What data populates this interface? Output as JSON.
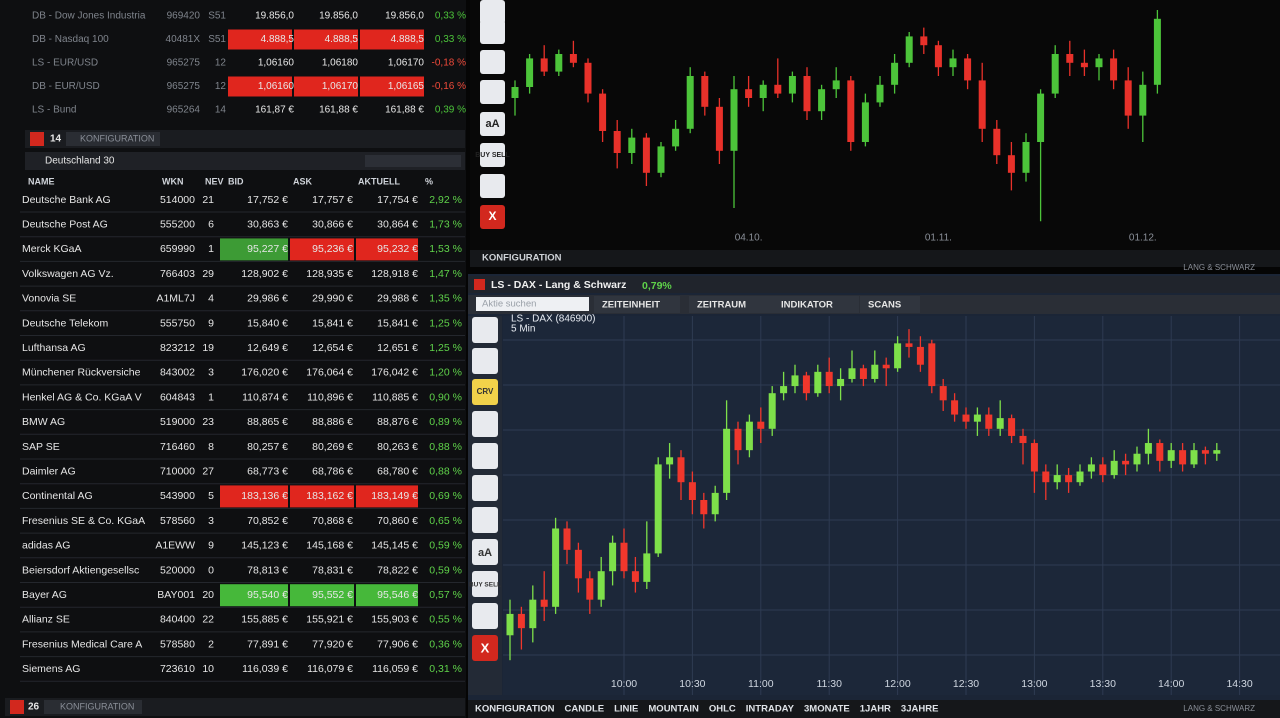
{
  "top_table": {
    "rows": [
      [
        "DB - Dow Jones Industria",
        "969420",
        "S51",
        "19.856,0",
        "19.856,0",
        "19.856,0",
        "0,33 %"
      ],
      [
        "DB - Nasdaq 100",
        "40481X",
        "S51",
        "4.888,5",
        "4.888,5",
        "4.888,5",
        "0,33 %"
      ],
      [
        "LS - EUR/USD",
        "965275",
        "12",
        "1,06160",
        "1,06180",
        "1,06170",
        "-0,18 %"
      ],
      [
        "DB - EUR/USD",
        "965275",
        "12",
        "1,06160",
        "1,06170",
        "1,06165",
        "-0,16 %"
      ],
      [
        "LS - Bund",
        "965264",
        "14",
        "161,87 €",
        "161,88 €",
        "161,88 €",
        "0,39 %"
      ]
    ],
    "highlights": [
      {
        "row": 1,
        "cols": [
          3,
          4,
          5
        ],
        "color": "#e0261e"
      },
      {
        "row": 3,
        "cols": [
          3,
          4,
          5
        ],
        "color": "#e0261e"
      }
    ],
    "toolbar_count": "14",
    "toolbar_label": "KONFIGURATION"
  },
  "dax_table": {
    "title": "Deutschland 30",
    "columns": [
      "NAME",
      "WKN",
      "NEV",
      "BID",
      "ASK",
      "AKTUELL",
      "%"
    ],
    "rows": [
      [
        "Deutsche Bank AG",
        "514000",
        "21",
        "17,752 €",
        "17,757 €",
        "17,754 €",
        "2,92 %"
      ],
      [
        "Deutsche Post AG",
        "555200",
        "6",
        "30,863 €",
        "30,866 €",
        "30,864 €",
        "1,73 %"
      ],
      [
        "Merck KGaA",
        "659990",
        "1",
        "95,227 €",
        "95,236 €",
        "95,232 €",
        "1,53 %"
      ],
      [
        "Volkswagen AG Vz.",
        "766403",
        "29",
        "128,902 €",
        "128,935 €",
        "128,918 €",
        "1,47 %"
      ],
      [
        "Vonovia SE",
        "A1ML7J",
        "4",
        "29,986 €",
        "29,990 €",
        "29,988 €",
        "1,35 %"
      ],
      [
        "Deutsche Telekom",
        "555750",
        "9",
        "15,840 €",
        "15,841 €",
        "15,841 €",
        "1,25 %"
      ],
      [
        "Lufthansa AG",
        "823212",
        "19",
        "12,649 €",
        "12,654 €",
        "12,651 €",
        "1,25 %"
      ],
      [
        "Münchener Rückversiche",
        "843002",
        "3",
        "176,020 €",
        "176,064 €",
        "176,042 €",
        "1,20 %"
      ],
      [
        "Henkel AG & Co. KGaA V",
        "604843",
        "1",
        "110,874 €",
        "110,896 €",
        "110,885 €",
        "0,90 %"
      ],
      [
        "BMW AG",
        "519000",
        "23",
        "88,865 €",
        "88,886 €",
        "88,876 €",
        "0,89 %"
      ],
      [
        "SAP SE",
        "716460",
        "8",
        "80,257 €",
        "80,269 €",
        "80,263 €",
        "0,88 %"
      ],
      [
        "Daimler AG",
        "710000",
        "27",
        "68,773 €",
        "68,786 €",
        "68,780 €",
        "0,88 %"
      ],
      [
        "Continental AG",
        "543900",
        "5",
        "183,136 €",
        "183,162 €",
        "183,149 €",
        "0,69 %"
      ],
      [
        "Fresenius SE & Co. KGaA",
        "578560",
        "3",
        "70,852 €",
        "70,868 €",
        "70,860 €",
        "0,65 %"
      ],
      [
        "adidas AG",
        "A1EWW",
        "9",
        "145,123 €",
        "145,168 €",
        "145,145 €",
        "0,59 %"
      ],
      [
        "Beiersdorf Aktiengesellsc",
        "520000",
        "0",
        "78,813 €",
        "78,831 €",
        "78,822 €",
        "0,59 %"
      ],
      [
        "Bayer AG",
        "BAY001",
        "20",
        "95,540 €",
        "95,552 €",
        "95,546 €",
        "0,57 %"
      ],
      [
        "Allianz SE",
        "840400",
        "22",
        "155,885 €",
        "155,921 €",
        "155,903 €",
        "0,55 %"
      ],
      [
        "Fresenius Medical Care A",
        "578580",
        "2",
        "77,891 €",
        "77,920 €",
        "77,906 €",
        "0,36 %"
      ],
      [
        "Siemens AG",
        "723610",
        "10",
        "116,039 €",
        "116,079 €",
        "116,059 €",
        "0,31 %"
      ]
    ],
    "highlights": [
      {
        "row": 2,
        "cols": [
          3
        ],
        "color": "#3d9b35"
      },
      {
        "row": 2,
        "cols": [
          4,
          5
        ],
        "color": "#e0261e"
      },
      {
        "row": 12,
        "cols": [
          3,
          4,
          5
        ],
        "color": "#e0261e"
      },
      {
        "row": 16,
        "cols": [
          3,
          4,
          5
        ],
        "color": "#46b83a"
      }
    ],
    "toolbar_count": "26",
    "toolbar_label": "KONFIGURATION"
  },
  "top_chart": {
    "tools": [
      "aA",
      "BUY SELL",
      "X"
    ],
    "footer": "KONFIGURATION",
    "watermark": "LANG & SCHWARZ",
    "up_color": "#4cc43a",
    "down_color": "#e8312a",
    "ylim": [
      0,
      100
    ],
    "xticks": [
      {
        "value": 16,
        "label": "04.10."
      },
      {
        "value": 29,
        "label": "01.11."
      },
      {
        "value": 43,
        "label": "01.12."
      }
    ],
    "candles": [
      [
        60,
        68,
        52,
        65
      ],
      [
        65,
        80,
        62,
        78
      ],
      [
        78,
        84,
        70,
        72
      ],
      [
        72,
        82,
        70,
        80
      ],
      [
        80,
        86,
        74,
        76
      ],
      [
        76,
        78,
        58,
        62
      ],
      [
        62,
        64,
        40,
        45
      ],
      [
        45,
        50,
        28,
        35
      ],
      [
        35,
        46,
        30,
        42
      ],
      [
        42,
        44,
        20,
        26
      ],
      [
        26,
        40,
        24,
        38
      ],
      [
        38,
        50,
        36,
        46
      ],
      [
        46,
        74,
        44,
        70
      ],
      [
        70,
        72,
        52,
        56
      ],
      [
        56,
        60,
        30,
        36
      ],
      [
        36,
        70,
        10,
        64
      ],
      [
        64,
        70,
        56,
        60
      ],
      [
        60,
        68,
        54,
        66
      ],
      [
        66,
        78,
        60,
        62
      ],
      [
        62,
        72,
        58,
        70
      ],
      [
        70,
        74,
        50,
        54
      ],
      [
        54,
        66,
        50,
        64
      ],
      [
        64,
        74,
        60,
        68
      ],
      [
        68,
        70,
        36,
        40
      ],
      [
        40,
        62,
        38,
        58
      ],
      [
        58,
        70,
        56,
        66
      ],
      [
        66,
        80,
        62,
        76
      ],
      [
        76,
        90,
        74,
        88
      ],
      [
        88,
        92,
        80,
        84
      ],
      [
        84,
        86,
        70,
        74
      ],
      [
        74,
        82,
        70,
        78
      ],
      [
        78,
        80,
        64,
        68
      ],
      [
        68,
        76,
        40,
        46
      ],
      [
        46,
        50,
        30,
        34
      ],
      [
        34,
        40,
        18,
        26
      ],
      [
        26,
        44,
        22,
        40
      ],
      [
        40,
        64,
        4,
        62
      ],
      [
        62,
        84,
        60,
        80
      ],
      [
        80,
        86,
        70,
        76
      ],
      [
        76,
        82,
        70,
        74
      ],
      [
        74,
        80,
        68,
        78
      ],
      [
        78,
        82,
        64,
        68
      ],
      [
        68,
        74,
        46,
        52
      ],
      [
        52,
        72,
        40,
        66
      ],
      [
        66,
        100,
        62,
        96
      ]
    ]
  },
  "main_chart": {
    "window_title": "LS - DAX - Lang & Schwarz",
    "change": "0,79%",
    "search_placeholder": "Aktie suchen",
    "menu": [
      "ZEITEINHEIT",
      "ZEITRAUM",
      "INDIKATOR",
      "SCANS"
    ],
    "instrument": "LS - DAX (846900)",
    "interval": "5 Min",
    "tools": [
      "CRV",
      "aA",
      "BUY SELL",
      "X"
    ],
    "footer": [
      "KONFIGURATION",
      "CANDLE",
      "LINIE",
      "MOUNTAIN",
      "OHLC",
      "INTRADAY",
      "3MONATE",
      "1JAHR",
      "3JAHRE"
    ],
    "watermark": "LANG & SCHWARZ",
    "up_color": "#7ee04a",
    "down_color": "#f0372c",
    "ylim": [
      0,
      100
    ],
    "xticks": [
      {
        "value": 10,
        "label": "10:00"
      },
      {
        "value": 16,
        "label": "10:30"
      },
      {
        "value": 22,
        "label": "11:00"
      },
      {
        "value": 28,
        "label": "11:30"
      },
      {
        "value": 34,
        "label": "12:00"
      },
      {
        "value": 40,
        "label": "12:30"
      },
      {
        "value": 46,
        "label": "13:00"
      },
      {
        "value": 52,
        "label": "13:30"
      },
      {
        "value": 58,
        "label": "14:00"
      },
      {
        "value": 64,
        "label": "14:30"
      }
    ],
    "candles": [
      [
        12,
        22,
        5,
        18
      ],
      [
        18,
        20,
        8,
        14
      ],
      [
        14,
        26,
        10,
        22
      ],
      [
        22,
        30,
        16,
        20
      ],
      [
        20,
        45,
        18,
        42
      ],
      [
        42,
        44,
        32,
        36
      ],
      [
        36,
        38,
        24,
        28
      ],
      [
        28,
        30,
        18,
        22
      ],
      [
        22,
        34,
        20,
        30
      ],
      [
        30,
        40,
        26,
        38
      ],
      [
        38,
        42,
        28,
        30
      ],
      [
        30,
        34,
        24,
        27
      ],
      [
        27,
        44,
        25,
        35
      ],
      [
        35,
        62,
        34,
        60
      ],
      [
        60,
        66,
        56,
        62
      ],
      [
        62,
        64,
        50,
        55
      ],
      [
        55,
        58,
        46,
        50
      ],
      [
        50,
        52,
        42,
        46
      ],
      [
        46,
        54,
        44,
        52
      ],
      [
        52,
        78,
        50,
        70
      ],
      [
        70,
        72,
        60,
        64
      ],
      [
        64,
        74,
        62,
        72
      ],
      [
        72,
        76,
        66,
        70
      ],
      [
        70,
        82,
        68,
        80
      ],
      [
        80,
        86,
        78,
        82
      ],
      [
        82,
        88,
        80,
        85
      ],
      [
        85,
        86,
        78,
        80
      ],
      [
        80,
        88,
        79,
        86
      ],
      [
        86,
        90,
        80,
        82
      ],
      [
        82,
        87,
        78,
        84
      ],
      [
        84,
        92,
        83,
        87
      ],
      [
        87,
        88,
        82,
        84
      ],
      [
        84,
        92,
        83,
        88
      ],
      [
        88,
        90,
        82,
        87
      ],
      [
        87,
        96,
        86,
        94
      ],
      [
        94,
        98,
        90,
        93
      ],
      [
        93,
        96,
        86,
        88
      ],
      [
        94,
        95,
        80,
        82
      ],
      [
        82,
        84,
        75,
        78
      ],
      [
        78,
        80,
        72,
        74
      ],
      [
        74,
        76,
        70,
        72
      ],
      [
        72,
        76,
        68,
        74
      ],
      [
        74,
        76,
        68,
        70
      ],
      [
        70,
        78,
        68,
        73
      ],
      [
        73,
        74,
        66,
        68
      ],
      [
        68,
        70,
        60,
        66
      ],
      [
        66,
        67,
        52,
        58
      ],
      [
        58,
        60,
        50,
        55
      ],
      [
        55,
        60,
        53,
        57
      ],
      [
        57,
        59,
        52,
        55
      ],
      [
        55,
        60,
        54,
        58
      ],
      [
        58,
        62,
        56,
        60
      ],
      [
        60,
        62,
        55,
        57
      ],
      [
        57,
        64,
        56,
        61
      ],
      [
        61,
        63,
        57,
        60
      ],
      [
        60,
        65,
        58,
        63
      ],
      [
        63,
        70,
        60,
        66
      ],
      [
        66,
        67,
        58,
        61
      ],
      [
        61,
        66,
        59,
        64
      ],
      [
        64,
        66,
        58,
        60
      ],
      [
        60,
        66,
        59,
        64
      ],
      [
        64,
        65,
        60,
        63
      ],
      [
        63,
        66,
        61,
        64
      ]
    ]
  }
}
